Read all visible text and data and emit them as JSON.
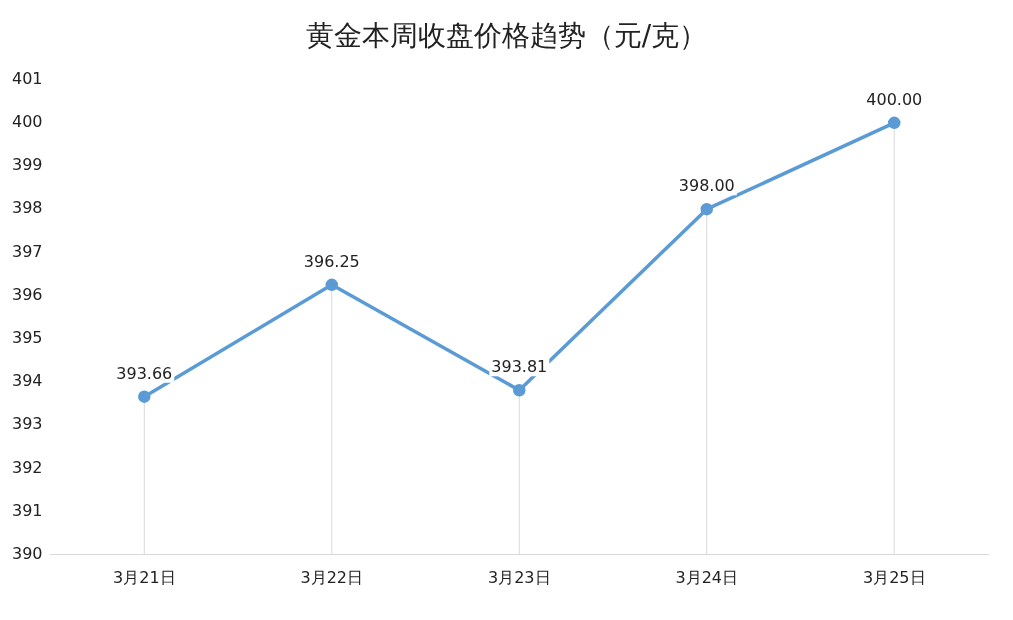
{
  "chart_data": {
    "type": "line",
    "title": "黄金本周收盘价格趋势（元/克）",
    "categories": [
      "3月21日",
      "3月22日",
      "3月23日",
      "3月24日",
      "3月25日"
    ],
    "series": [
      {
        "color": "#5b9bd5",
        "values": [
          393.66,
          396.25,
          393.81,
          398.0,
          400.0
        ],
        "value_labels": [
          "393.66",
          "396.25",
          "393.81",
          "398.00",
          "400.00"
        ]
      }
    ],
    "ylim": [
      390,
      401
    ],
    "yticks": [
      390,
      391,
      392,
      393,
      394,
      395,
      396,
      397,
      398,
      399,
      400,
      401
    ],
    "grid": "x",
    "legend": false,
    "marker": "circle",
    "line_style": "solid"
  }
}
